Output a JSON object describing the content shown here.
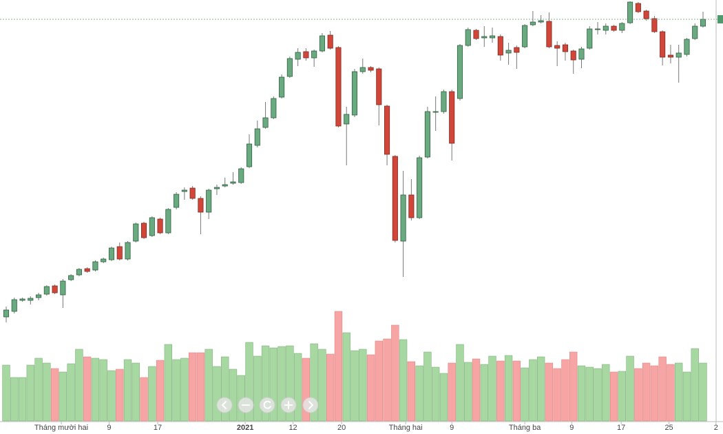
{
  "chart_data": {
    "type": "candlestick",
    "open": [
      40,
      48,
      64,
      64,
      68,
      73,
      85,
      72,
      94,
      101,
      110,
      108,
      120,
      123,
      142,
      124,
      150,
      176,
      158,
      182,
      162,
      199,
      222,
      227,
      212,
      192,
      226,
      230,
      234,
      235,
      258,
      289,
      315,
      329,
      359,
      389,
      414,
      425,
      416,
      426,
      449,
      431,
      320,
      333,
      396,
      402,
      400,
      346,
      273,
      150,
      217,
      184,
      272,
      337,
      338,
      367,
      357,
      434,
      456,
      445,
      445,
      447,
      423,
      431,
      432,
      464,
      468,
      469,
      434,
      435,
      426,
      414,
      430,
      457,
      456,
      462,
      456,
      467,
      495,
      484,
      473,
      454,
      420,
      417,
      421,
      444,
      462
    ],
    "high": [
      55,
      68,
      68,
      70,
      75,
      86,
      87,
      95,
      102,
      111,
      112,
      122,
      126,
      142,
      148,
      150,
      177,
      178,
      186,
      184,
      198,
      221,
      228,
      230,
      215,
      226,
      232,
      242,
      250,
      257,
      305,
      325,
      352,
      360,
      392,
      418,
      430,
      430,
      428,
      452,
      455,
      433,
      345,
      400,
      415,
      404,
      402,
      348,
      275,
      252,
      240,
      274,
      345,
      360,
      370,
      370,
      436,
      460,
      458,
      462,
      460,
      450,
      438,
      434,
      465,
      484,
      478,
      482,
      440,
      438,
      428,
      432,
      462,
      468,
      466,
      464,
      468,
      498,
      497,
      486,
      477,
      456,
      435,
      435,
      445,
      466,
      483
    ],
    "low": [
      32,
      45,
      62,
      58,
      64,
      71,
      73,
      53,
      92,
      99,
      104,
      106,
      118,
      121,
      122,
      122,
      148,
      153,
      156,
      160,
      160,
      196,
      210,
      210,
      160,
      182,
      217,
      228,
      232,
      233,
      256,
      286,
      313,
      327,
      357,
      387,
      404,
      412,
      403,
      424,
      428,
      315,
      260,
      330,
      393,
      395,
      318,
      260,
      148,
      98,
      180,
      182,
      270,
      310,
      335,
      267,
      354,
      432,
      442,
      432,
      438,
      412,
      406,
      400,
      430,
      462,
      466,
      430,
      404,
      412,
      393,
      401,
      428,
      450,
      450,
      454,
      452,
      465,
      481,
      470,
      452,
      405,
      408,
      380,
      418,
      442,
      460
    ],
    "close": [
      50,
      65,
      66,
      67,
      72,
      84,
      75,
      92,
      100,
      109,
      106,
      120,
      124,
      140,
      124,
      148,
      175,
      155,
      184,
      162,
      196,
      218,
      224,
      212,
      192,
      224,
      228,
      232,
      236,
      255,
      291,
      313,
      329,
      357,
      388,
      415,
      424,
      416,
      426,
      448,
      430,
      317,
      334,
      396,
      402,
      398,
      348,
      276,
      151,
      217,
      184,
      271,
      338,
      338,
      367,
      292,
      434,
      457,
      444,
      447,
      448,
      420,
      427,
      424,
      463,
      468,
      470,
      432,
      430,
      425,
      413,
      429,
      458,
      458,
      462,
      456,
      466,
      497,
      483,
      473,
      454,
      417,
      417,
      423,
      443,
      462,
      472
    ],
    "volume": [
      81,
      63,
      63,
      81,
      91,
      84,
      76,
      71,
      83,
      104,
      93,
      91,
      89,
      73,
      75,
      89,
      84,
      63,
      79,
      88,
      111,
      89,
      91,
      99,
      99,
      104,
      79,
      93,
      75,
      66,
      114,
      94,
      109,
      106,
      108,
      109,
      98,
      91,
      112,
      104,
      97,
      159,
      128,
      102,
      104,
      96,
      116,
      119,
      139,
      118,
      86,
      80,
      100,
      78,
      69,
      84,
      111,
      85,
      90,
      82,
      94,
      87,
      95,
      87,
      77,
      89,
      93,
      84,
      76,
      89,
      100,
      80,
      78,
      76,
      82,
      71,
      72,
      94,
      76,
      84,
      80,
      93,
      82,
      84,
      71,
      105,
      84
    ],
    "ylim": [
      0,
      500
    ],
    "volume_lim": [
      0,
      171
    ],
    "xlim": [
      0,
      86
    ],
    "xticks": [
      {
        "value": 6.8,
        "label": "Tháng mười hai"
      },
      {
        "value": 12.7,
        "label": "9"
      },
      {
        "value": 18.7,
        "label": "17"
      },
      {
        "value": 29.5,
        "label": "2021"
      },
      {
        "value": 35.4,
        "label": "12"
      },
      {
        "value": 41.4,
        "label": "20"
      },
      {
        "value": 49.3,
        "label": "Tháng hai"
      },
      {
        "value": 55,
        "label": "9"
      },
      {
        "value": 64,
        "label": "Tháng ba"
      },
      {
        "value": 69.8,
        "label": "9"
      },
      {
        "value": 75.9,
        "label": "17"
      },
      {
        "value": 81.8,
        "label": "25"
      },
      {
        "value": 87.6,
        "label": "2"
      }
    ],
    "up_color": "#6aaa80",
    "down_color": "#d2463a",
    "volume_up_color": "#a8d8a2",
    "volume_down_color": "#f7a4a4"
  }
}
